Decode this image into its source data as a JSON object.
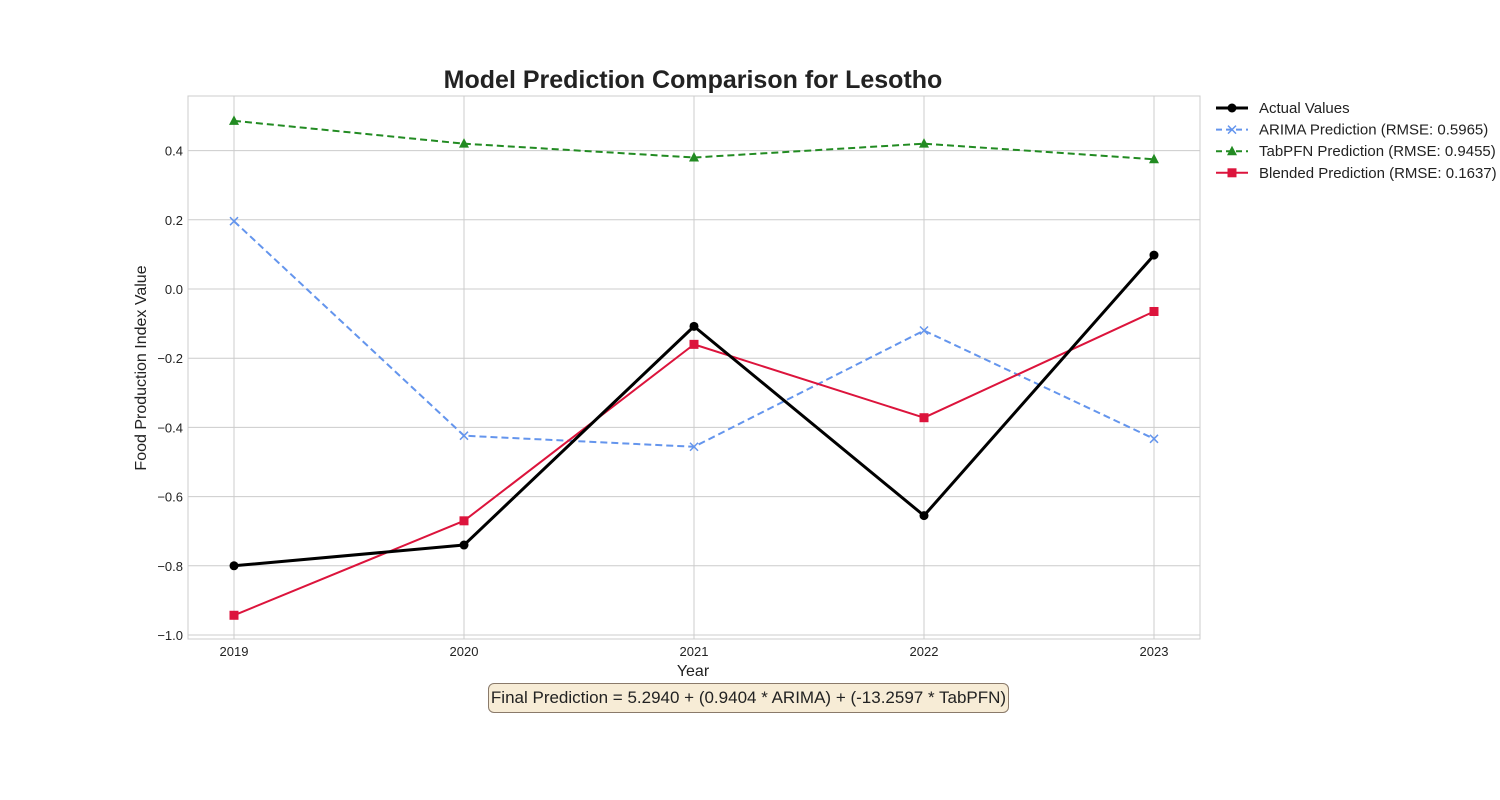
{
  "chart_data": {
    "type": "line",
    "title": "Model Prediction Comparison for Lesotho",
    "xlabel": "Year",
    "ylabel": "Food Production Index Value",
    "x": [
      "2019",
      "2020",
      "2021",
      "2022",
      "2023"
    ],
    "ylim": [
      -1.02,
      0.55
    ],
    "yticks": [
      "0.4",
      "0.2",
      "0.0",
      "−0.2",
      "−0.4",
      "−0.6",
      "−0.8",
      "−1.0"
    ],
    "ytick_values": [
      0.4,
      0.2,
      0.0,
      -0.2,
      -0.4,
      -0.6,
      -0.8,
      -1.0
    ],
    "grid": true,
    "legend": "outside-top-right",
    "series": [
      {
        "name": "Actual Values",
        "values": [
          -0.8,
          -0.74,
          -0.108,
          -0.655,
          0.098
        ],
        "color": "#000000",
        "marker": "circle",
        "dash": "solid"
      },
      {
        "name": "ARIMA Prediction (RMSE: 0.5965)",
        "values": [
          0.196,
          -0.424,
          -0.456,
          -0.12,
          -0.433
        ],
        "color": "#6495ed",
        "marker": "x",
        "dash": "dashed"
      },
      {
        "name": "TabPFN Prediction (RMSE: 0.9455)",
        "values": [
          0.486,
          0.42,
          0.38,
          0.42,
          0.375
        ],
        "color": "#228b22",
        "marker": "triangle",
        "dash": "dashed"
      },
      {
        "name": "Blended Prediction (RMSE: 0.1637)",
        "values": [
          -0.943,
          -0.67,
          -0.16,
          -0.372,
          -0.065
        ],
        "color": "#dc143c",
        "marker": "square",
        "dash": "solid"
      }
    ]
  },
  "annotation": "Final Prediction = 5.2940 + (0.9404 * ARIMA) + (-13.2597 * TabPFN)"
}
